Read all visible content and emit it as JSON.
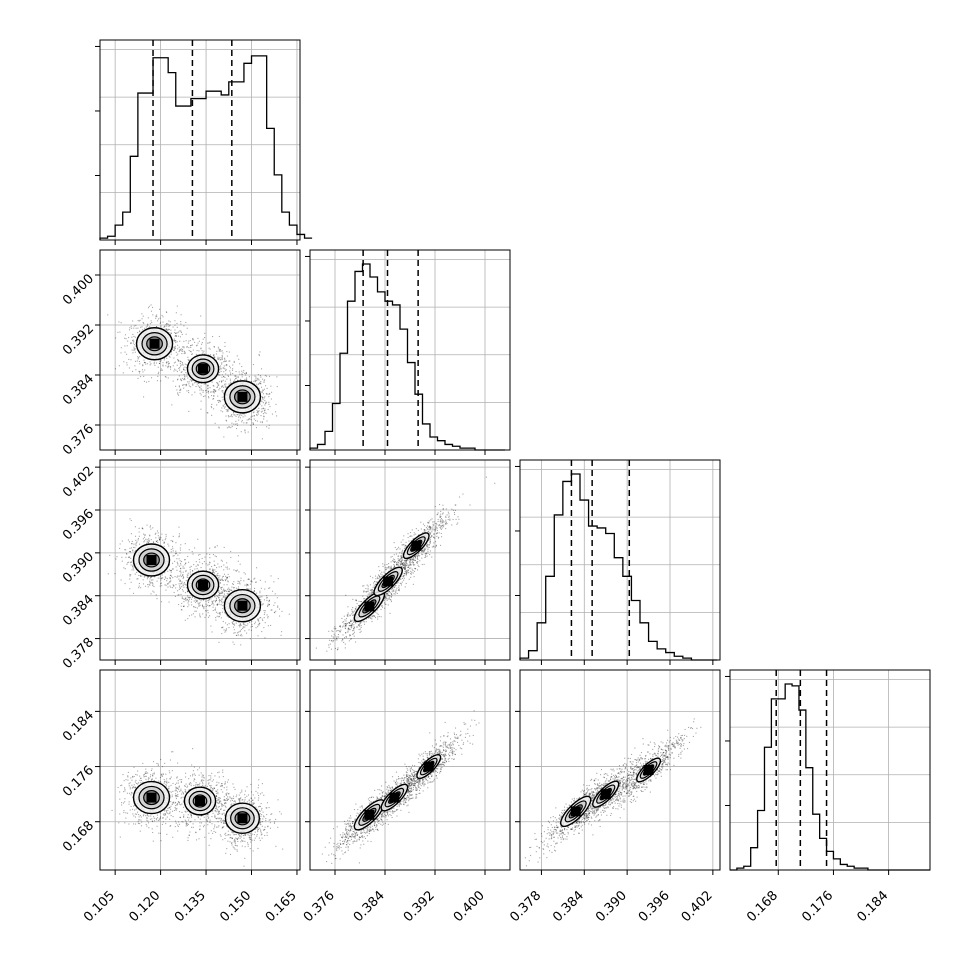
{
  "chart_data": {
    "type": "corner",
    "title": "",
    "grid": true,
    "parameters": [
      {
        "range": [
          0.1,
          0.166
        ],
        "ticks": [
          0.105,
          0.12,
          0.135,
          0.15,
          0.165
        ],
        "tick_labels": [
          "0.105",
          "0.120",
          "0.135",
          "0.150",
          "0.165"
        ]
      },
      {
        "range": [
          0.372,
          0.404
        ],
        "ticks": [
          0.376,
          0.384,
          0.392,
          0.4
        ],
        "tick_labels": [
          "0.376",
          "0.384",
          "0.392",
          "0.400"
        ]
      },
      {
        "range": [
          0.375,
          0.403
        ],
        "ticks": [
          0.378,
          0.384,
          0.39,
          0.396,
          0.402
        ],
        "tick_labels": [
          "0.378",
          "0.384",
          "0.390",
          "0.396",
          "0.402"
        ]
      },
      {
        "range": [
          0.161,
          0.19
        ],
        "ticks": [
          0.168,
          0.176,
          0.184
        ],
        "tick_labels": [
          "0.168",
          "0.176",
          "0.184"
        ]
      }
    ],
    "quantiles": [
      [
        0.1175,
        0.1305,
        0.1435
      ],
      [
        0.3805,
        0.3844,
        0.3893
      ],
      [
        0.3822,
        0.3851,
        0.3903
      ],
      [
        0.1677,
        0.1712,
        0.175
      ]
    ],
    "histograms": [
      {
        "bin_edges": [
          0.1,
          0.0025
        ],
        "counts": [
          0.01,
          0.02,
          0.08,
          0.15,
          0.45,
          0.79,
          0.79,
          0.98,
          0.98,
          0.9,
          0.72,
          0.72,
          0.76,
          0.76,
          0.8,
          0.8,
          0.78,
          0.85,
          0.85,
          0.95,
          0.99,
          0.99,
          0.6,
          0.35,
          0.15,
          0.08,
          0.03,
          0.01
        ]
      },
      {
        "bin_edges": [
          0.372,
          0.0012
        ],
        "counts": [
          0.01,
          0.03,
          0.1,
          0.25,
          0.52,
          0.8,
          0.96,
          1.0,
          0.93,
          0.85,
          0.8,
          0.78,
          0.65,
          0.47,
          0.3,
          0.14,
          0.07,
          0.05,
          0.03,
          0.02,
          0.01,
          0.01,
          0.0,
          0.0,
          0.0,
          0.0
        ]
      },
      {
        "bin_edges": [
          0.375,
          0.0012
        ],
        "counts": [
          0.01,
          0.05,
          0.2,
          0.45,
          0.78,
          0.96,
          1.0,
          0.86,
          0.72,
          0.71,
          0.68,
          0.55,
          0.45,
          0.32,
          0.2,
          0.1,
          0.06,
          0.04,
          0.02,
          0.01,
          0.0,
          0.0,
          0.0
        ]
      },
      {
        "bin_edges": [
          0.161,
          0.001
        ],
        "counts": [
          0.0,
          0.01,
          0.02,
          0.12,
          0.32,
          0.66,
          0.92,
          0.92,
          1.0,
          0.99,
          0.86,
          0.55,
          0.3,
          0.17,
          0.1,
          0.06,
          0.03,
          0.02,
          0.01,
          0.01,
          0.0,
          0.0,
          0.0,
          0.0,
          0.0,
          0.0,
          0.0,
          0.0,
          0.0
        ]
      }
    ],
    "density_modes": {
      "1,0": [
        [
          0.118,
          0.389,
          1.0
        ],
        [
          0.134,
          0.385,
          0.55
        ],
        [
          0.147,
          0.3805,
          1.0
        ]
      ],
      "2,0": [
        [
          0.117,
          0.389,
          1.0
        ],
        [
          0.134,
          0.3855,
          0.55
        ],
        [
          0.147,
          0.3826,
          1.0
        ]
      ],
      "3,0": [
        [
          0.117,
          0.1715,
          1.0
        ],
        [
          0.133,
          0.171,
          0.55
        ],
        [
          0.147,
          0.1685,
          0.8
        ]
      ],
      "2,1": [
        [
          0.3815,
          0.3825,
          1.0
        ],
        [
          0.3845,
          0.386,
          0.8
        ],
        [
          0.389,
          0.391,
          0.5
        ]
      ],
      "3,1": [
        [
          0.3815,
          0.169,
          1.0
        ],
        [
          0.3855,
          0.1715,
          0.6
        ],
        [
          0.391,
          0.176,
          0.3
        ]
      ],
      "3,2": [
        [
          0.3828,
          0.1695,
          1.0
        ],
        [
          0.387,
          0.172,
          0.55
        ],
        [
          0.393,
          0.1755,
          0.3
        ]
      ]
    }
  }
}
